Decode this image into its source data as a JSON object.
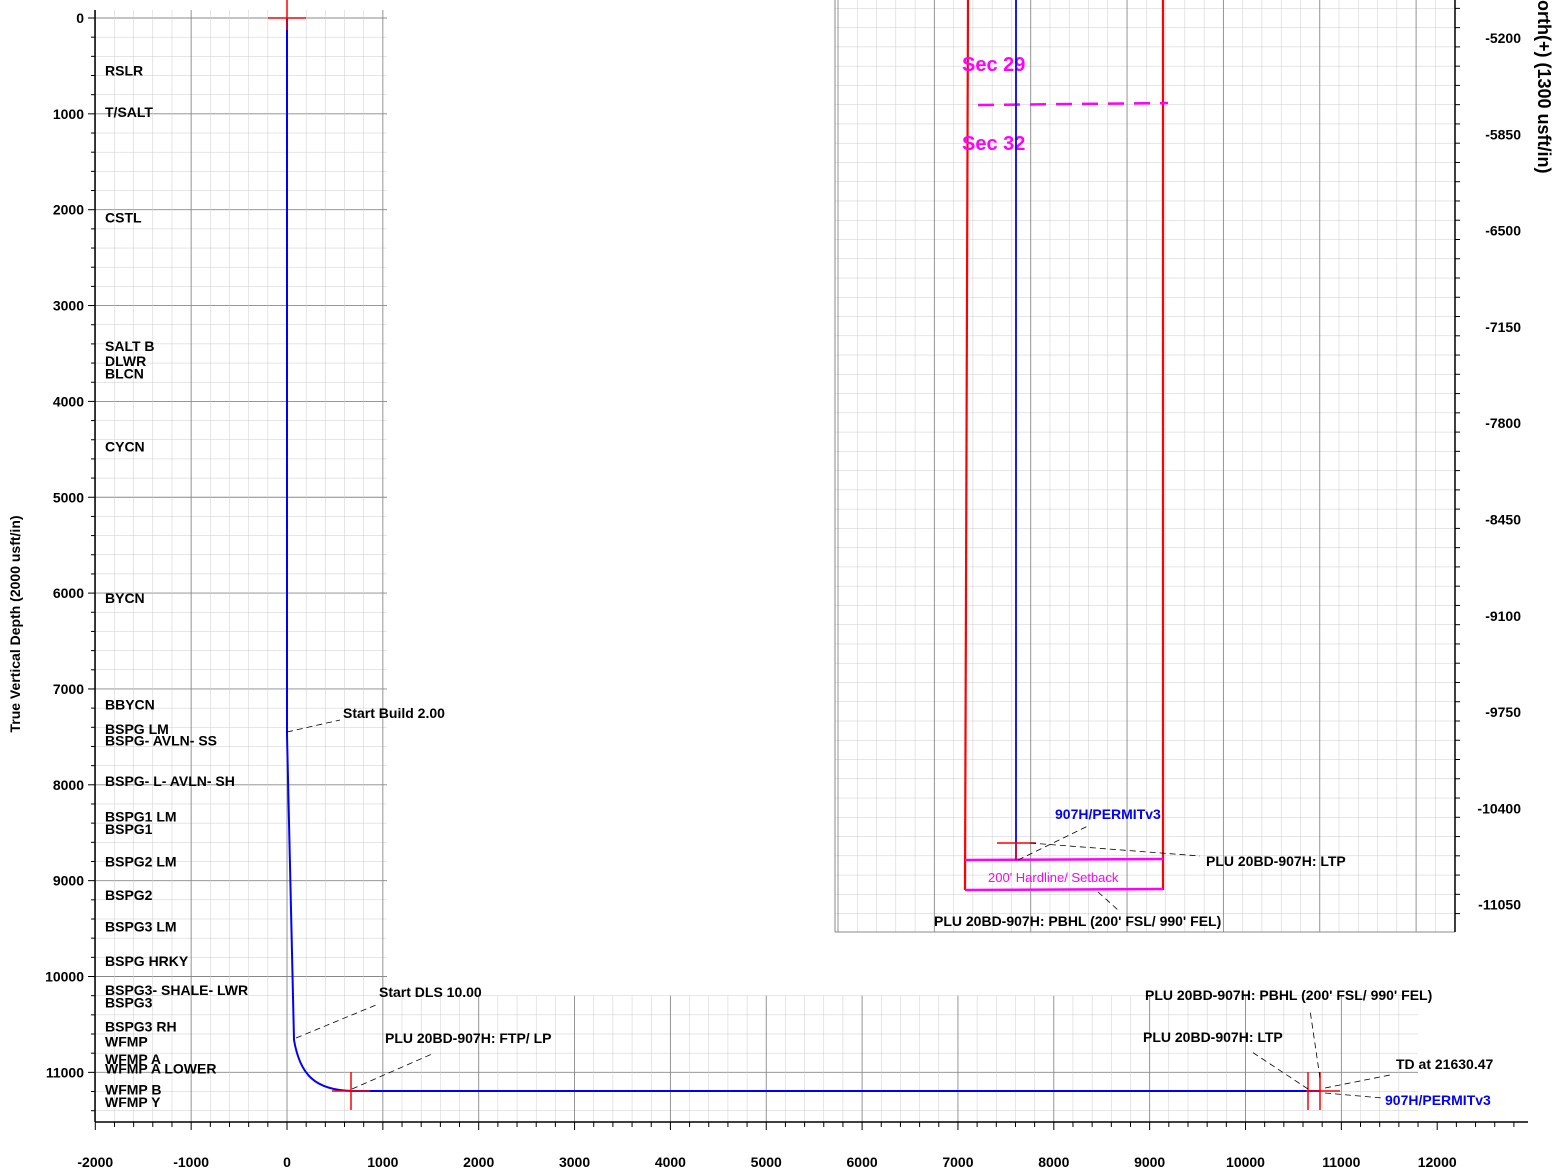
{
  "section_view": {
    "y_axis_title": "True Vertical Depth (2000 usft/in)",
    "y_ticks": [
      0,
      1000,
      2000,
      3000,
      4000,
      5000,
      6000,
      7000,
      8000,
      9000,
      10000,
      11000
    ],
    "x_ticks": [
      -2000,
      -1000,
      0,
      1000,
      2000,
      3000,
      4000,
      5000,
      6000,
      7000,
      8000,
      9000,
      10000,
      11000,
      12000
    ],
    "formations": [
      {
        "name": "RSLR",
        "tvd": 550
      },
      {
        "name": "T/SALT",
        "tvd": 980
      },
      {
        "name": "CSTL",
        "tvd": 2080
      },
      {
        "name": "SALT  B",
        "tvd": 3420
      },
      {
        "name": "DLWR",
        "tvd": 3580
      },
      {
        "name": "BLCN",
        "tvd": 3710
      },
      {
        "name": "CYCN",
        "tvd": 4470
      },
      {
        "name": "BYCN",
        "tvd": 6050
      },
      {
        "name": "BBYCN",
        "tvd": 7160
      },
      {
        "name": "BSPG  LM",
        "tvd": 7420
      },
      {
        "name": "BSPG-  AVLN-  SS",
        "tvd": 7540
      },
      {
        "name": "BSPG-  L-  AVLN-  SH",
        "tvd": 7960
      },
      {
        "name": "BSPG1  LM",
        "tvd": 8330
      },
      {
        "name": "BSPG1",
        "tvd": 8460
      },
      {
        "name": "BSPG2  LM",
        "tvd": 8800
      },
      {
        "name": "BSPG2",
        "tvd": 9150
      },
      {
        "name": "BSPG3  LM",
        "tvd": 9480
      },
      {
        "name": "BSPG  HRKY",
        "tvd": 9840
      },
      {
        "name": "BSPG3-  SHALE-  LWR",
        "tvd": 10140
      },
      {
        "name": "BSPG3",
        "tvd": 10270
      },
      {
        "name": "BSPG3  RH",
        "tvd": 10520
      },
      {
        "name": "WFMP",
        "tvd": 10680
      },
      {
        "name": "WFMP  A",
        "tvd": 10860
      },
      {
        "name": "WFMP  A  LOWER",
        "tvd": 10960
      },
      {
        "name": "WFMP  B",
        "tvd": 11180
      },
      {
        "name": "WFMP  Y",
        "tvd": 11310
      }
    ],
    "annotations": {
      "start_build": "Start Build 2.00",
      "start_dls": "Start DLS 10.00",
      "ftp_lp": "PLU 20BD-907H: FTP/ LP",
      "pbhl": "PLU 20BD-907H: PBHL (200' FSL/ 990' FEL)",
      "ltp": "PLU 20BD-907H: LTP",
      "td": "TD at 21630.47",
      "plan": "907H/PERMITv3"
    }
  },
  "plan_view": {
    "y_axis_title": "orth(+) (1300 usft/in)",
    "y_ticks": [
      -5200,
      -5850,
      -6500,
      -7150,
      -7800,
      -8450,
      -9100,
      -9750,
      -10400,
      -11050
    ],
    "sec_29": "Sec 29",
    "sec_32": "Sec 32",
    "hardline": "200' Hardline/ Setback",
    "plan": "907H/PERMITv3",
    "ltp": "PLU 20BD-907H: LTP",
    "pbhl": "PLU 20BD-907H: PBHL (200' FSL/ 990' FEL)"
  },
  "colors": {
    "wellbore": "#0000ff",
    "marker": "#ff0000",
    "lease": "#ff0000",
    "section_line": "#ff00ff",
    "grid_minor": "#cccccc",
    "grid_major": "#888888"
  }
}
